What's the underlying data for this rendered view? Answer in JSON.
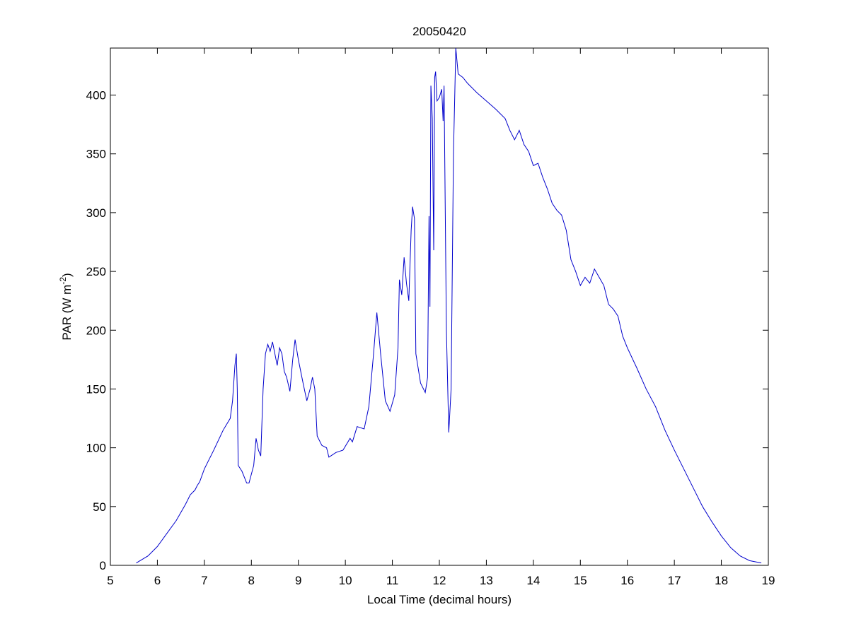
{
  "chart_data": {
    "type": "line",
    "title": "20050420",
    "xlabel": "Local Time (decimal hours)",
    "ylabel": {
      "text": "PAR (W m",
      "superscript": "-2",
      "suffix": ")"
    },
    "xlim": [
      5,
      19
    ],
    "xticks": [
      5,
      6,
      7,
      8,
      9,
      10,
      11,
      12,
      13,
      14,
      15,
      16,
      17,
      18,
      19
    ],
    "ylim": [
      0,
      440
    ],
    "yticks": [
      0,
      50,
      100,
      150,
      200,
      250,
      300,
      350,
      400
    ],
    "x": [
      5.55,
      5.8,
      6.0,
      6.2,
      6.4,
      6.6,
      6.7,
      6.8,
      6.85,
      6.9,
      7.0,
      7.2,
      7.4,
      7.55,
      7.6,
      7.65,
      7.68,
      7.7,
      7.72,
      7.8,
      7.85,
      7.9,
      7.95,
      8.05,
      8.1,
      8.15,
      8.2,
      8.25,
      8.3,
      8.35,
      8.4,
      8.45,
      8.5,
      8.55,
      8.6,
      8.65,
      8.7,
      8.75,
      8.82,
      8.88,
      8.93,
      9.0,
      9.1,
      9.18,
      9.25,
      9.3,
      9.35,
      9.4,
      9.5,
      9.6,
      9.65,
      9.8,
      9.95,
      10.1,
      10.15,
      10.25,
      10.4,
      10.5,
      10.6,
      10.67,
      10.75,
      10.85,
      10.95,
      11.05,
      11.12,
      11.15,
      11.2,
      11.25,
      11.3,
      11.35,
      11.4,
      11.43,
      11.47,
      11.5,
      11.6,
      11.7,
      11.75,
      11.78,
      11.8,
      11.82,
      11.85,
      11.88,
      11.9,
      11.92,
      11.95,
      12.0,
      12.05,
      12.08,
      12.1,
      12.15,
      12.2,
      12.25,
      12.3,
      12.35,
      12.4,
      12.5,
      12.6,
      12.8,
      13.0,
      13.2,
      13.4,
      13.5,
      13.6,
      13.7,
      13.8,
      13.9,
      14.0,
      14.1,
      14.2,
      14.3,
      14.4,
      14.5,
      14.6,
      14.7,
      14.8,
      14.9,
      15.0,
      15.1,
      15.2,
      15.3,
      15.4,
      15.5,
      15.6,
      15.7,
      15.8,
      15.9,
      16.0,
      16.2,
      16.4,
      16.6,
      16.8,
      17.0,
      17.2,
      17.4,
      17.6,
      17.8,
      18.0,
      18.2,
      18.4,
      18.6,
      18.85
    ],
    "series": [
      {
        "color": "#0000cc",
        "values": [
          2,
          8,
          16,
          27,
          38,
          52,
          60,
          64,
          68,
          71,
          82,
          98,
          115,
          125,
          140,
          170,
          180,
          150,
          85,
          80,
          75,
          70,
          70,
          85,
          108,
          98,
          93,
          150,
          180,
          188,
          182,
          190,
          180,
          170,
          185,
          180,
          165,
          160,
          148,
          175,
          192,
          175,
          155,
          140,
          150,
          160,
          150,
          110,
          102,
          100,
          92,
          96,
          98,
          108,
          105,
          118,
          116,
          135,
          180,
          215,
          180,
          140,
          131,
          145,
          185,
          243,
          230,
          262,
          240,
          225,
          285,
          305,
          295,
          180,
          155,
          147,
          160,
          297,
          220,
          408,
          380,
          268,
          415,
          420,
          395,
          398,
          405,
          378,
          408,
          200,
          113,
          150,
          350,
          440,
          418,
          415,
          410,
          402,
          395,
          388,
          380,
          370,
          362,
          370,
          358,
          352,
          340,
          342,
          330,
          320,
          308,
          302,
          298,
          285,
          260,
          250,
          238,
          245,
          240,
          252,
          245,
          238,
          222,
          218,
          212,
          195,
          185,
          168,
          150,
          135,
          115,
          98,
          82,
          66,
          50,
          37,
          25,
          15,
          8,
          4,
          2
        ]
      }
    ]
  }
}
